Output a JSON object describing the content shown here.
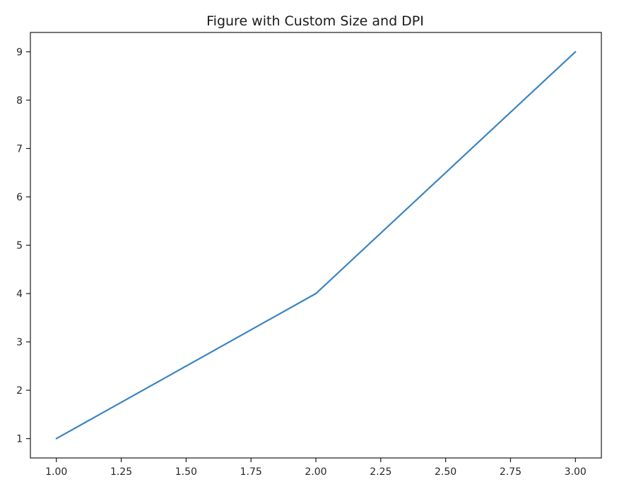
{
  "chart_data": {
    "type": "line",
    "title": "Figure with Custom Size and DPI",
    "xlabel": "",
    "ylabel": "",
    "x": [
      1,
      2,
      3
    ],
    "series": [
      {
        "values": [
          1,
          4,
          9
        ],
        "color": "#3a84c3"
      }
    ],
    "xlim": [
      0.9,
      3.1
    ],
    "ylim": [
      0.6,
      9.4
    ],
    "xticks": [
      1.0,
      1.25,
      1.5,
      1.75,
      2.0,
      2.25,
      2.5,
      2.75,
      3.0
    ],
    "xtick_labels": [
      "1.00",
      "1.25",
      "1.50",
      "1.75",
      "2.00",
      "2.25",
      "2.50",
      "2.75",
      "3.00"
    ],
    "yticks": [
      1,
      2,
      3,
      4,
      5,
      6,
      7,
      8,
      9
    ],
    "ytick_labels": [
      "1",
      "2",
      "3",
      "4",
      "5",
      "6",
      "7",
      "8",
      "9"
    ],
    "grid": false,
    "legend": "none"
  }
}
